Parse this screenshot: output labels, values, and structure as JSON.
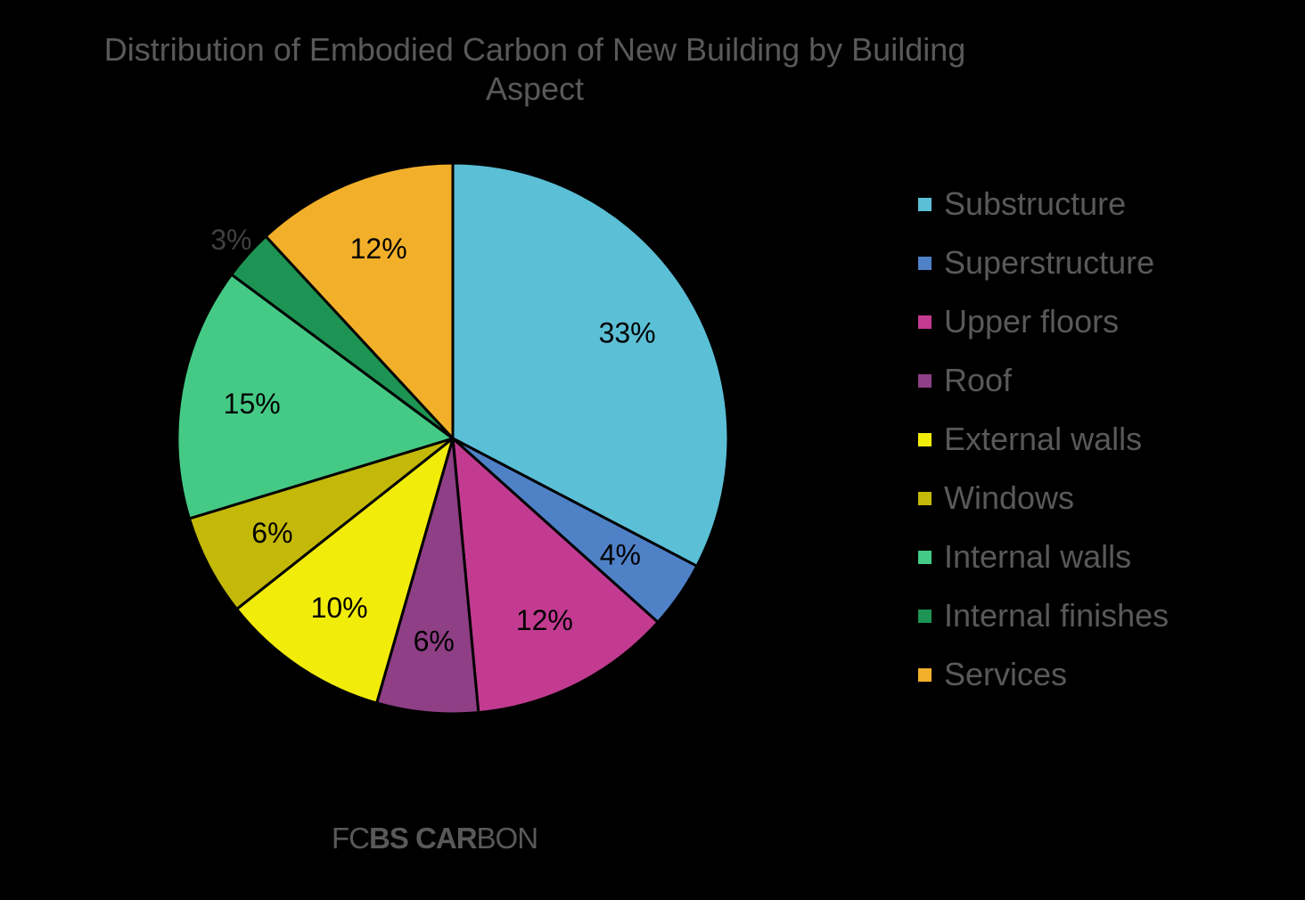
{
  "chart_data": {
    "type": "pie",
    "title": "Distribution of Embodied Carbon of New Building by Building\nAspect",
    "slices": [
      {
        "name": "Substructure",
        "value": 33,
        "label": "33%",
        "color": "#5bbfd6"
      },
      {
        "name": "Superstructure",
        "value": 4,
        "label": "4%",
        "color": "#4f81c7"
      },
      {
        "name": "Upper floors",
        "value": 12,
        "label": "12%",
        "color": "#c23b91"
      },
      {
        "name": "Roof",
        "value": 6,
        "label": "6%",
        "color": "#8e3f85"
      },
      {
        "name": "External walls",
        "value": 10,
        "label": "10%",
        "color": "#f2ec0b"
      },
      {
        "name": "Windows",
        "value": 6,
        "label": "6%",
        "color": "#c4b908"
      },
      {
        "name": "Internal walls",
        "value": 15,
        "label": "15%",
        "color": "#45ca86"
      },
      {
        "name": "Internal finishes",
        "value": 3,
        "label": "3%",
        "color": "#1d9453"
      },
      {
        "name": "Services",
        "value": 12,
        "label": "12%",
        "color": "#f2b02a"
      }
    ],
    "start_angle": "12 o'clock",
    "direction": "clockwise",
    "legend_position": "right"
  },
  "logo": {
    "part1": "F",
    "part2": "C",
    "part3": "BS CAR",
    "part4": "BON"
  }
}
